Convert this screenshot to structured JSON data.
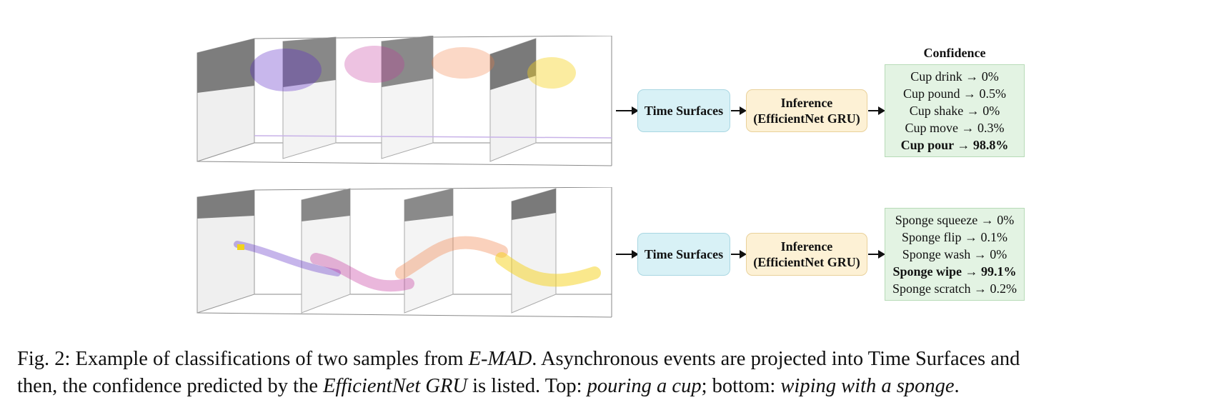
{
  "colors": {
    "time_surface_fill": "#d8f1f6",
    "inference_fill": "#fdf1d5",
    "confidence_fill": "#e3f3e3",
    "event_colors": [
      "#5b2bc6",
      "#c2329c",
      "#f07a3e",
      "#f6d21a"
    ]
  },
  "icons": {
    "arrow": "right-arrow-icon"
  },
  "rows": [
    {
      "time_surfaces_label": "Time Surfaces",
      "inference_line1": "Inference",
      "inference_line2": "(EfficientNet GRU)",
      "confidence_title": "Confidence",
      "confidence": [
        {
          "text": "Cup drink → 0%",
          "best": false
        },
        {
          "text": "Cup pound → 0.5%",
          "best": false
        },
        {
          "text": "Cup shake → 0%",
          "best": false
        },
        {
          "text": "Cup move → 0.3%",
          "best": false
        },
        {
          "text": "Cup pour → 98.8%",
          "best": true
        }
      ]
    },
    {
      "time_surfaces_label": "Time Surfaces",
      "inference_line1": "Inference",
      "inference_line2": "(EfficientNet GRU)",
      "confidence_title": "",
      "confidence": [
        {
          "text": "Sponge squeeze → 0%",
          "best": false
        },
        {
          "text": "Sponge flip → 0.1%",
          "best": false
        },
        {
          "text": "Sponge wash → 0%",
          "best": false
        },
        {
          "text": "Sponge wipe → 99.1%",
          "best": true
        },
        {
          "text": "Sponge scratch → 0.2%",
          "best": false
        }
      ]
    }
  ],
  "caption": {
    "line1": {
      "a": "Fig. 2: Example of classifications of two samples from ",
      "b": "E-MAD",
      "c": ". Asynchronous events are projected into Time Surfaces and"
    },
    "line2": {
      "a": "then, the confidence predicted by the ",
      "b": "EfficientNet GRU",
      "c": " is listed. Top: ",
      "d": "pouring a cup",
      "e": "; bottom: ",
      "f": "wiping with a sponge",
      "g": "."
    }
  }
}
